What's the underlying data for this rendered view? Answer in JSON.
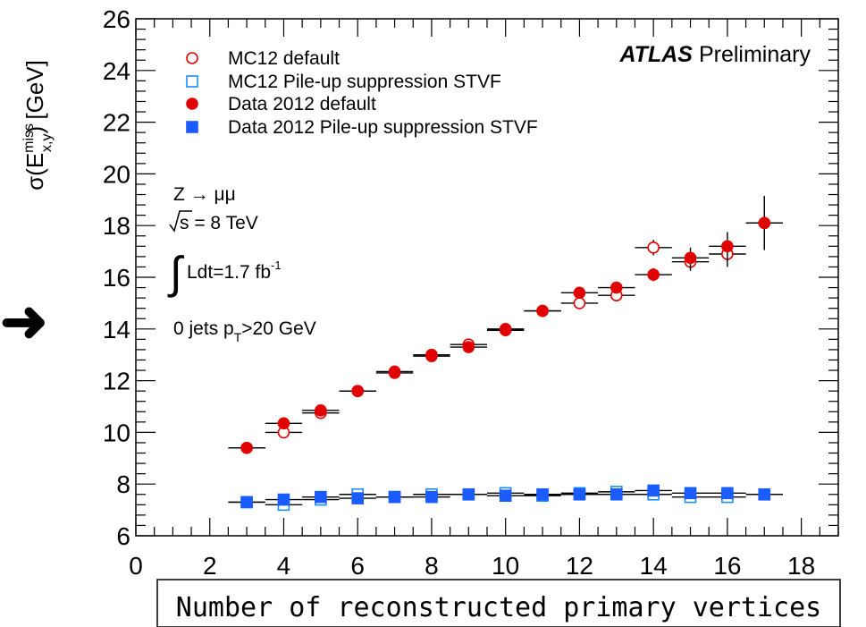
{
  "chart_data": {
    "type": "scatter",
    "title": "",
    "ylabel": "σ(E",
    "ylabel_sup": "miss",
    "ylabel_sub": "x,y",
    "ylabel_rest": ") [GeV]",
    "xlabel": "Number of reconstructed primary vertices",
    "xlim": [
      0,
      19
    ],
    "ylim": [
      6,
      26
    ],
    "x_ticks": [
      0,
      2,
      4,
      6,
      8,
      10,
      12,
      14,
      16,
      18
    ],
    "y_ticks": [
      6,
      8,
      10,
      12,
      14,
      16,
      18,
      20,
      22,
      24,
      26
    ],
    "grid": false,
    "legend_position": "top-left",
    "atlas_label": "ATLAS",
    "atlas_sub": "Preliminary",
    "annotations": {
      "process": "Z → μμ",
      "energy_sqrt": "s",
      "energy_rest": " = 8 TeV",
      "lumi_integral": "∫",
      "lumi_text": "Ldt=1.7 fb",
      "lumi_sup": "-1",
      "jets_pre": "0 jets p",
      "jets_sub": "T",
      "jets_post": ">20 GeV"
    },
    "arrow_glyph": "➜",
    "series": [
      {
        "name": "MC12 default",
        "color": "#e00000",
        "marker": "open-circle",
        "x": [
          3,
          4,
          5,
          6,
          7,
          8,
          9,
          10,
          11,
          12,
          13,
          14,
          15,
          16,
          17
        ],
        "y": [
          9.4,
          10.0,
          10.75,
          11.6,
          12.3,
          13.0,
          13.4,
          14.0,
          14.7,
          15.0,
          15.3,
          17.15,
          16.6,
          16.9,
          18.1
        ],
        "yerr": [
          0.05,
          0.08,
          0.08,
          0.08,
          0.1,
          0.1,
          0.12,
          0.12,
          0.15,
          0.15,
          0.2,
          0.3,
          0.35,
          0.5,
          1.0
        ]
      },
      {
        "name": "MC12 Pile-up suppression STVF",
        "color": "#1a8cff",
        "marker": "open-square",
        "x": [
          3,
          4,
          5,
          6,
          7,
          8,
          9,
          10,
          11,
          12,
          13,
          14,
          15,
          16,
          17
        ],
        "y": [
          7.3,
          7.2,
          7.4,
          7.6,
          7.5,
          7.6,
          7.6,
          7.65,
          7.55,
          7.65,
          7.7,
          7.6,
          7.5,
          7.5,
          7.6
        ],
        "yerr": [
          0.05,
          0.05,
          0.05,
          0.05,
          0.05,
          0.05,
          0.05,
          0.05,
          0.05,
          0.05,
          0.05,
          0.1,
          0.1,
          0.1,
          0.15
        ]
      },
      {
        "name": "Data 2012 default",
        "color": "#e00000",
        "marker": "filled-circle",
        "x": [
          3,
          4,
          5,
          6,
          7,
          8,
          9,
          10,
          11,
          12,
          13,
          14,
          15,
          16,
          17
        ],
        "y": [
          9.4,
          10.35,
          10.85,
          11.6,
          12.35,
          12.95,
          13.3,
          13.95,
          14.7,
          15.4,
          15.6,
          16.1,
          16.75,
          17.2,
          18.1
        ],
        "yerr": [
          0.05,
          0.08,
          0.08,
          0.08,
          0.1,
          0.1,
          0.1,
          0.12,
          0.12,
          0.15,
          0.2,
          0.25,
          0.4,
          0.55,
          1.05
        ]
      },
      {
        "name": "Data 2012 Pile-up suppression STVF",
        "color": "#1a5cff",
        "marker": "filled-square",
        "x": [
          3,
          4,
          5,
          6,
          7,
          8,
          9,
          10,
          11,
          12,
          13,
          14,
          15,
          16,
          17
        ],
        "y": [
          7.3,
          7.4,
          7.5,
          7.45,
          7.5,
          7.5,
          7.6,
          7.55,
          7.6,
          7.6,
          7.6,
          7.75,
          7.65,
          7.65,
          7.6
        ],
        "yerr": [
          0.05,
          0.05,
          0.05,
          0.05,
          0.05,
          0.05,
          0.05,
          0.05,
          0.05,
          0.05,
          0.05,
          0.08,
          0.1,
          0.1,
          0.15
        ]
      }
    ]
  }
}
